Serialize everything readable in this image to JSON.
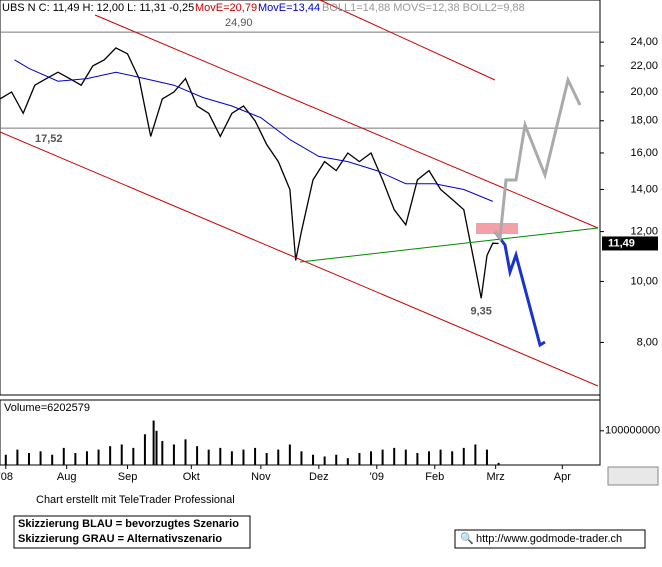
{
  "chart_data": [
    {
      "type": "line",
      "header": {
        "quote": "UBS N C: 11,49 H: 12,00 L: 11,31 -0,25",
        "ma_red": "MovE=20,79",
        "ma_blue": "MovE=13,44",
        "boll": "BOLL1=14,88 MOVS=12,38 BOLL2=9,88"
      },
      "log_scale": true,
      "xlim": [
        0,
        207
      ],
      "xticks": [
        {
          "value": 2,
          "label": "'08"
        },
        {
          "value": 23,
          "label": "Aug"
        },
        {
          "value": 44,
          "label": "Sep"
        },
        {
          "value": 66,
          "label": "Okt"
        },
        {
          "value": 90,
          "label": "Nov"
        },
        {
          "value": 110,
          "label": "Dez"
        },
        {
          "value": 130,
          "label": "'09"
        },
        {
          "value": 150,
          "label": "Feb"
        },
        {
          "value": 171,
          "label": "Mrz"
        },
        {
          "value": 194,
          "label": "Apr"
        }
      ],
      "ylim": [
        6.6,
        28
      ],
      "yticks": [
        {
          "value": 8,
          "label": "8,00"
        },
        {
          "value": 10,
          "label": "10,00"
        },
        {
          "value": 12,
          "label": "12,00"
        },
        {
          "value": 14,
          "label": "14,00"
        },
        {
          "value": 16,
          "label": "16,00"
        },
        {
          "value": 18,
          "label": "18,00"
        },
        {
          "value": 20,
          "label": "20,00"
        },
        {
          "value": 22,
          "label": "22,00"
        },
        {
          "value": 24,
          "label": "24,00"
        }
      ],
      "series": [
        {
          "color": "#000000",
          "x": [
            0,
            4,
            8,
            12,
            16,
            20,
            24,
            28,
            32,
            36,
            40,
            44,
            48,
            52,
            56,
            60,
            64,
            68,
            72,
            76,
            80,
            84,
            88,
            92,
            96,
            100,
            102,
            104,
            108,
            112,
            116,
            120,
            124,
            128,
            132,
            136,
            140,
            144,
            148,
            152,
            156,
            160,
            164,
            166,
            168,
            170,
            172
          ],
          "values": [
            19.5,
            20,
            18.5,
            20.5,
            21,
            21.5,
            21,
            20.5,
            22,
            22.5,
            23.5,
            23,
            21,
            17,
            19.5,
            20,
            21,
            19,
            18.5,
            17,
            18.5,
            19,
            18,
            16.5,
            15.5,
            14,
            10.8,
            12,
            14.5,
            15.5,
            15,
            16,
            15.5,
            16,
            14.5,
            13,
            12.3,
            14.5,
            15,
            14,
            13.5,
            13,
            10.5,
            9.4,
            11,
            11.5,
            11.49
          ]
        },
        {
          "color": "#0000cc",
          "x": [
            5,
            10,
            20,
            30,
            40,
            50,
            60,
            70,
            80,
            90,
            100,
            110,
            120,
            130,
            140,
            150,
            160,
            170
          ],
          "values": [
            22.5,
            21.8,
            20.8,
            21,
            21.5,
            21,
            20.5,
            19.6,
            19,
            18.2,
            16.8,
            15.8,
            15.5,
            15,
            14.3,
            14.3,
            14,
            13.4
          ]
        }
      ],
      "last_label": {
        "value": 11.49,
        "label": "11,49"
      },
      "levels": [
        {
          "value": 24.9,
          "label": "24,90"
        },
        {
          "value": 17.52,
          "label": "17,52"
        }
      ],
      "annotations": [
        {
          "x": 166,
          "value": 9.35,
          "label": "9,35"
        }
      ]
    },
    {
      "type": "bar",
      "title": "Volume=6202579",
      "color": "#000000",
      "ylim": [
        0,
        190000000
      ],
      "yticks": [
        100000000
      ],
      "x": [
        2,
        6,
        10,
        14,
        18,
        22,
        26,
        30,
        34,
        38,
        42,
        46,
        50,
        53,
        54,
        56,
        60,
        64,
        68,
        72,
        76,
        80,
        84,
        88,
        92,
        96,
        100,
        104,
        108,
        112,
        116,
        120,
        124,
        128,
        132,
        136,
        140,
        144,
        148,
        152,
        156,
        160,
        164,
        168,
        172
      ],
      "values": [
        30000000,
        45000000,
        35000000,
        40000000,
        30000000,
        50000000,
        35000000,
        40000000,
        45000000,
        55000000,
        60000000,
        50000000,
        90000000,
        130000000,
        100000000,
        70000000,
        60000000,
        75000000,
        55000000,
        45000000,
        50000000,
        40000000,
        45000000,
        50000000,
        35000000,
        45000000,
        60000000,
        40000000,
        30000000,
        25000000,
        30000000,
        20000000,
        35000000,
        40000000,
        45000000,
        50000000,
        45000000,
        35000000,
        40000000,
        45000000,
        40000000,
        50000000,
        60000000,
        45000000,
        6202579
      ]
    }
  ],
  "footer": {
    "credit": "Chart erstellt mit TeleTrader Professional",
    "legend_blue": "Skizzierung BLAU = bevorzugtes Szenario",
    "legend_gray": "Skizzierung GRAU = Alternativszenario",
    "url": "http://www.godmode-trader.ch"
  }
}
